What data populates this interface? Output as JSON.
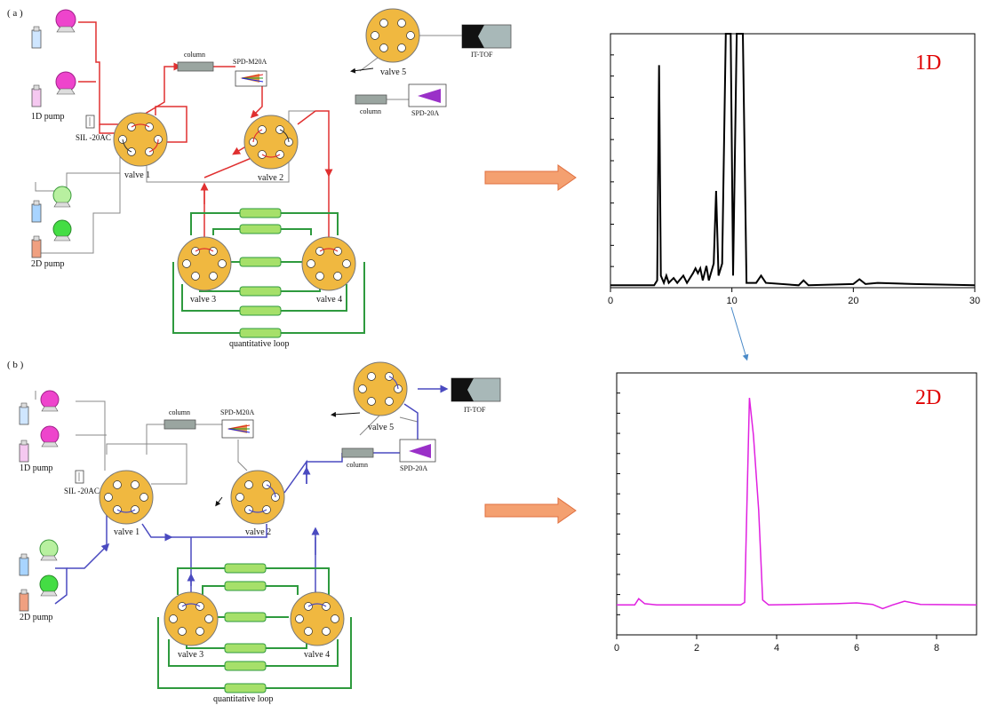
{
  "panels": {
    "a": {
      "tag": "( a )",
      "pump_1d": "1D pump",
      "pump_2d": "2D pump",
      "sil": "SIL -20AC",
      "column_1": "column",
      "detector_1": "SPD-M20A",
      "column_2": "column",
      "detector_2": "SPD-20A",
      "ms": "IT-TOF",
      "valve1": "valve 1",
      "valve2": "valve 2",
      "valve3": "valve 3",
      "valve4": "valve 4",
      "valve5": "valve 5",
      "loop": "quantitative loop"
    },
    "b": {
      "tag": "( b )",
      "pump_1d": "1D pump",
      "pump_2d": "2D pump",
      "sil": "SIL -20AC",
      "column_1": "column",
      "detector_1": "SPD-M20A",
      "column_2": "column",
      "detector_2": "SPD-20A",
      "ms": "IT-TOF",
      "valve1": "valve 1",
      "valve2": "valve 2",
      "valve3": "valve 3",
      "valve4": "valve 4",
      "valve5": "valve 5",
      "loop": "quantitative loop"
    }
  },
  "colors": {
    "flow_a": "#e03030",
    "flow_b": "#4a4ac0",
    "loop": "#2e9a3e",
    "valve": "#f0b840",
    "arrow": "#f4a070",
    "trace_1d": "#000000",
    "trace_2d": "#e020e0",
    "label_red": "#e00000"
  },
  "chart_data": [
    {
      "type": "line",
      "title": "1D",
      "xlim": [
        0,
        30
      ],
      "xticks": [
        "0",
        "10",
        "20",
        "30"
      ],
      "series": [
        {
          "points": [
            [
              0,
              0.01
            ],
            [
              3.6,
              0.01
            ],
            [
              3.85,
              0.03
            ],
            [
              4.0,
              0.92
            ],
            [
              4.15,
              0.05
            ],
            [
              4.4,
              0.02
            ],
            [
              4.6,
              0.05
            ],
            [
              4.8,
              0.02
            ],
            [
              5.2,
              0.04
            ],
            [
              5.5,
              0.02
            ],
            [
              6.0,
              0.05
            ],
            [
              6.3,
              0.02
            ],
            [
              6.8,
              0.06
            ],
            [
              7.0,
              0.08
            ],
            [
              7.2,
              0.06
            ],
            [
              7.4,
              0.08
            ],
            [
              7.6,
              0.03
            ],
            [
              7.9,
              0.09
            ],
            [
              8.1,
              0.03
            ],
            [
              8.5,
              0.1
            ],
            [
              8.7,
              0.4
            ],
            [
              8.9,
              0.05
            ],
            [
              9.2,
              0.1
            ],
            [
              9.5,
              1.1
            ],
            [
              9.9,
              1.1
            ],
            [
              10.1,
              0.05
            ],
            [
              10.4,
              1.1
            ],
            [
              10.9,
              1.1
            ],
            [
              11.2,
              0.02
            ],
            [
              12.0,
              0.02
            ],
            [
              12.4,
              0.05
            ],
            [
              12.8,
              0.02
            ],
            [
              15.5,
              0.01
            ],
            [
              15.9,
              0.03
            ],
            [
              16.3,
              0.01
            ],
            [
              20.0,
              0.015
            ],
            [
              20.5,
              0.035
            ],
            [
              21.0,
              0.015
            ],
            [
              22.0,
              0.02
            ],
            [
              25.0,
              0.015
            ],
            [
              30,
              0.01
            ]
          ]
        }
      ]
    },
    {
      "type": "line",
      "title": "2D",
      "xlim": [
        0,
        9
      ],
      "xticks": [
        "0",
        "2",
        "4",
        "6",
        "8"
      ],
      "series": [
        {
          "points": [
            [
              0,
              0.12
            ],
            [
              0.45,
              0.12
            ],
            [
              0.55,
              0.145
            ],
            [
              0.7,
              0.125
            ],
            [
              1.0,
              0.12
            ],
            [
              3.1,
              0.12
            ],
            [
              3.2,
              0.13
            ],
            [
              3.32,
              0.95
            ],
            [
              3.42,
              0.8
            ],
            [
              3.55,
              0.5
            ],
            [
              3.65,
              0.14
            ],
            [
              3.8,
              0.12
            ],
            [
              5.5,
              0.125
            ],
            [
              6.0,
              0.128
            ],
            [
              6.4,
              0.122
            ],
            [
              6.65,
              0.105
            ],
            [
              6.9,
              0.12
            ],
            [
              7.2,
              0.135
            ],
            [
              7.6,
              0.122
            ],
            [
              9,
              0.12
            ]
          ]
        }
      ]
    }
  ]
}
